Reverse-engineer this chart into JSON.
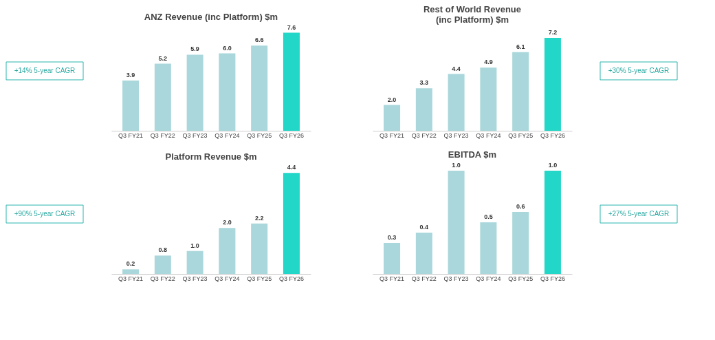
{
  "chart_data": [
    {
      "type": "bar",
      "title": "ANZ Revenue (inc Platform) $m",
      "categories": [
        "Q3 FY21",
        "Q3 FY22",
        "Q3 FY23",
        "Q3 FY24",
        "Q3 FY25",
        "Q3 FY26"
      ],
      "values": [
        3.9,
        5.2,
        5.9,
        6.0,
        6.6,
        7.6
      ],
      "value_labels": [
        "3.9",
        "5.2",
        "5.9",
        "6.0",
        "6.6",
        "7.6"
      ],
      "colors": [
        "#a9d7db",
        "#a9d7db",
        "#a9d7db",
        "#a9d7db",
        "#a9d7db",
        "#22d6c8"
      ],
      "annotations": [
        "+14% 5-year CAGR"
      ]
    },
    {
      "type": "bar",
      "title": "Rest of World Revenue\n(inc Platform) $m",
      "categories": [
        "Q3 FY21",
        "Q3 FY22",
        "Q3 FY23",
        "Q3 FY24",
        "Q3 FY25",
        "Q3 FY26"
      ],
      "values": [
        2.0,
        3.3,
        4.4,
        4.9,
        6.1,
        7.2
      ],
      "value_labels": [
        "2.0",
        "3.3",
        "4.4",
        "4.9",
        "6.1",
        "7.2"
      ],
      "colors": [
        "#a9d7db",
        "#a9d7db",
        "#a9d7db",
        "#a9d7db",
        "#a9d7db",
        "#22d6c8"
      ],
      "annotations": [
        "+30% 5-year CAGR"
      ]
    },
    {
      "type": "bar",
      "title": "Platform Revenue $m",
      "categories": [
        "Q3 FY21",
        "Q3 FY22",
        "Q3 FY23",
        "Q3 FY24",
        "Q3 FY25",
        "Q3 FY26"
      ],
      "values": [
        0.2,
        0.8,
        1.0,
        2.0,
        2.2,
        4.4
      ],
      "value_labels": [
        "0.2",
        "0.8",
        "1.0",
        "2.0",
        "2.2",
        "4.4"
      ],
      "colors": [
        "#a9d7db",
        "#a9d7db",
        "#a9d7db",
        "#a9d7db",
        "#a9d7db",
        "#22d6c8"
      ],
      "annotations": [
        "+90% 5-year CAGR"
      ]
    },
    {
      "type": "bar",
      "title": "EBITDA $m",
      "categories": [
        "Q3 FY21",
        "Q3 FY22",
        "Q3 FY23",
        "Q3 FY24",
        "Q3 FY25",
        "Q3 FY26"
      ],
      "values": [
        0.3,
        0.4,
        1.0,
        0.5,
        0.6,
        1.0
      ],
      "value_labels": [
        "0.3",
        "0.4",
        "1.0",
        "0.5",
        "0.6",
        "1.0"
      ],
      "colors": [
        "#a9d7db",
        "#a9d7db",
        "#a9d7db",
        "#a9d7db",
        "#a9d7db",
        "#22d6c8"
      ],
      "annotations": [
        "+27% 5-year CAGR"
      ]
    }
  ]
}
